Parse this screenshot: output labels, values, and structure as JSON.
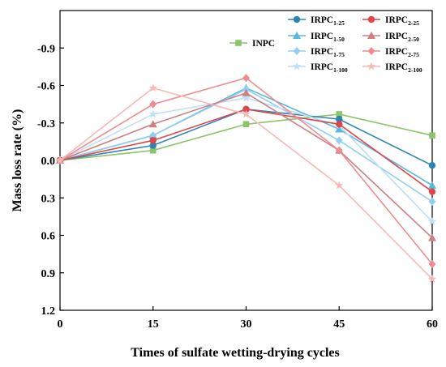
{
  "chart_data": {
    "type": "line",
    "xlabel": "Times of sulfate wetting-drying cycles",
    "ylabel": "Mass loss rate (%)",
    "x": [
      0,
      15,
      30,
      45,
      60
    ],
    "xticks": [
      "0",
      "15",
      "30",
      "45",
      "60"
    ],
    "xlim": [
      0,
      60
    ],
    "ylim": [
      -1.2,
      1.2
    ],
    "y_inverted": true,
    "yticks": [
      {
        "v": -0.9,
        "label": "-0.9"
      },
      {
        "v": -0.6,
        "label": "-0.6"
      },
      {
        "v": -0.3,
        "label": "-0.3"
      },
      {
        "v": 0.0,
        "label": "0.0"
      },
      {
        "v": 0.3,
        "label": "0.3"
      },
      {
        "v": 0.6,
        "label": "0.6"
      },
      {
        "v": 0.9,
        "label": "0.9"
      },
      {
        "v": 1.2,
        "label": "1.2"
      }
    ],
    "grid": false,
    "legend_position": "top-right",
    "series": [
      {
        "name": "INPC",
        "base": "INPC",
        "sub": "",
        "color": "#8bc46a",
        "marker": "square",
        "values": [
          0.0,
          -0.08,
          -0.29,
          -0.37,
          -0.2
        ]
      },
      {
        "name": "IRPC1-25",
        "base": "IRPC",
        "sub": "1-25",
        "color": "#2b86b5",
        "marker": "circle",
        "values": [
          0.0,
          -0.12,
          -0.41,
          -0.33,
          0.04
        ]
      },
      {
        "name": "IRPC1-50",
        "base": "IRPC",
        "sub": "1-50",
        "color": "#55b9e0",
        "marker": "triangle",
        "values": [
          0.0,
          -0.2,
          -0.58,
          -0.25,
          0.2
        ]
      },
      {
        "name": "IRPC1-75",
        "base": "IRPC",
        "sub": "1-75",
        "color": "#92cdf2",
        "marker": "diamond",
        "values": [
          0.0,
          -0.2,
          -0.57,
          -0.16,
          0.33
        ]
      },
      {
        "name": "IRPC1-100",
        "base": "IRPC",
        "sub": "1-100",
        "color": "#c0def5",
        "marker": "star",
        "values": [
          0.0,
          -0.37,
          -0.5,
          -0.28,
          0.49
        ]
      },
      {
        "name": "IRPC2-25",
        "base": "IRPC",
        "sub": "2-25",
        "color": "#e0454b",
        "marker": "circle",
        "values": [
          0.0,
          -0.16,
          -0.41,
          -0.29,
          0.25
        ]
      },
      {
        "name": "IRPC2-50",
        "base": "IRPC",
        "sub": "2-50",
        "color": "#cd7f82",
        "marker": "triangle",
        "values": [
          0.0,
          -0.29,
          -0.54,
          -0.08,
          0.62
        ]
      },
      {
        "name": "IRPC2-75",
        "base": "IRPC",
        "sub": "2-75",
        "color": "#ef8c90",
        "marker": "diamond",
        "values": [
          0.0,
          -0.45,
          -0.66,
          -0.08,
          0.83
        ]
      },
      {
        "name": "IRPC2-100",
        "base": "IRPC",
        "sub": "2-100",
        "color": "#f7b8b6",
        "marker": "star",
        "values": [
          0.0,
          -0.58,
          -0.37,
          0.2,
          0.95
        ]
      }
    ]
  }
}
